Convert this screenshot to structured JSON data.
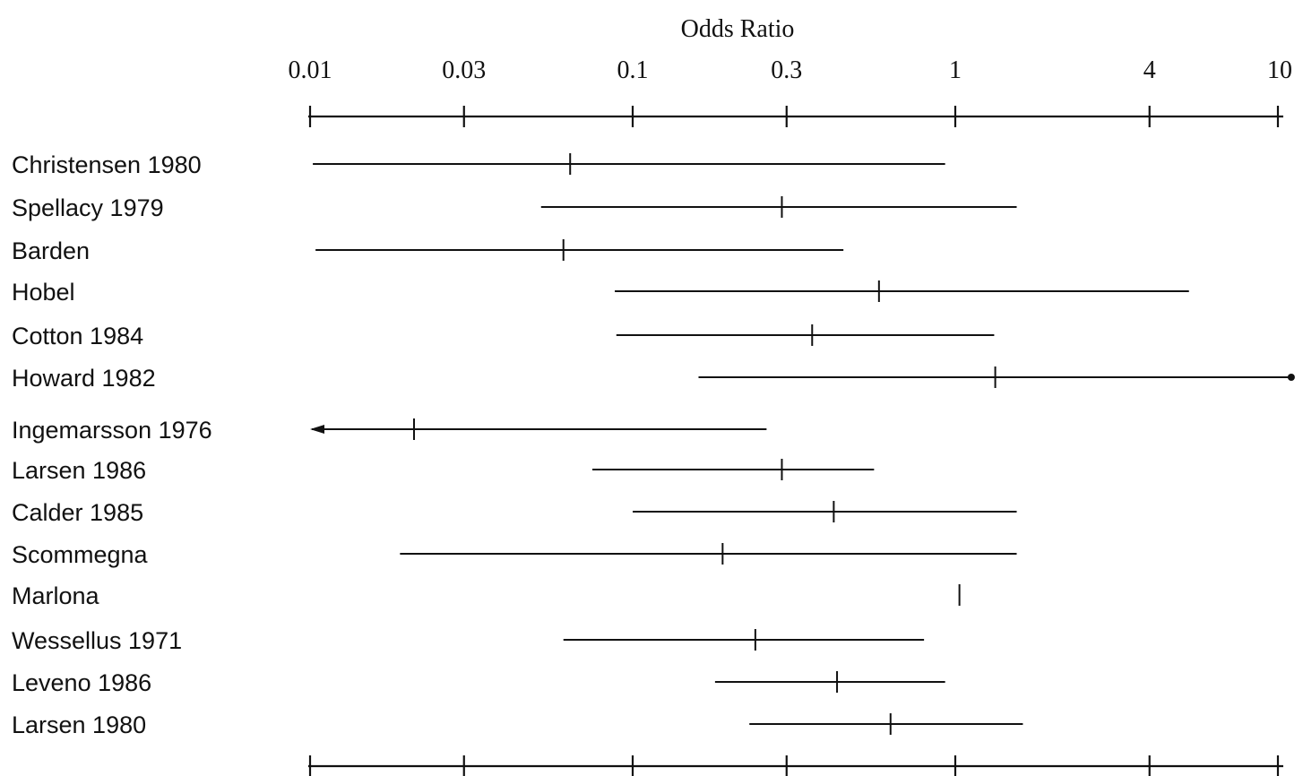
{
  "chart_data": {
    "type": "forest",
    "title": "",
    "xlabel": "Odds Ratio",
    "ylabel": "",
    "x_scale": "log",
    "xlim": [
      0.01,
      10
    ],
    "grid": false,
    "legend": "none",
    "ticks": [
      {
        "value": 0.01,
        "label": "0.01"
      },
      {
        "value": 0.03,
        "label": "0.03"
      },
      {
        "value": 0.1,
        "label": "0.1"
      },
      {
        "value": 0.3,
        "label": "0.3"
      },
      {
        "value": 1,
        "label": "1"
      },
      {
        "value": 4,
        "label": "4"
      },
      {
        "value": 10,
        "label": "10"
      }
    ],
    "studies": [
      {
        "label": "Christensen 1980",
        "or": 0.064,
        "lower": 0.0102,
        "upper": 0.93
      },
      {
        "label": "Spellacy 1979",
        "or": 0.29,
        "lower": 0.052,
        "upper": 1.55
      },
      {
        "label": "Barden",
        "or": 0.061,
        "lower": 0.0104,
        "upper": 0.45
      },
      {
        "label": "Hobel",
        "or": 0.58,
        "lower": 0.088,
        "upper": 5.3
      },
      {
        "label": "Cotton 1984",
        "or": 0.36,
        "lower": 0.089,
        "upper": 1.32
      },
      {
        "label": "Howard 1982",
        "or": 1.33,
        "lower": 0.16,
        "upper": 11.0
      },
      {
        "label": "Ingemarsson 1976",
        "or": 0.021,
        "lower": 0.01,
        "upper": 0.26
      },
      {
        "label": "Larsen 1986",
        "or": 0.29,
        "lower": 0.075,
        "upper": 0.56
      },
      {
        "label": "Calder 1985",
        "or": 0.42,
        "lower": 0.1,
        "upper": 1.55
      },
      {
        "label": "Scommegna",
        "or": 0.19,
        "lower": 0.019,
        "upper": 1.55
      },
      {
        "label": "Marlona",
        "or": 1.03,
        "lower": null,
        "upper": null
      },
      {
        "label": "Wessellus 1971",
        "or": 0.24,
        "lower": 0.061,
        "upper": 0.8
      },
      {
        "label": "Leveno 1986",
        "or": 0.43,
        "lower": 0.18,
        "upper": 0.93
      },
      {
        "label": "Larsen 1980",
        "or": 0.63,
        "lower": 0.23,
        "upper": 1.62
      }
    ]
  }
}
